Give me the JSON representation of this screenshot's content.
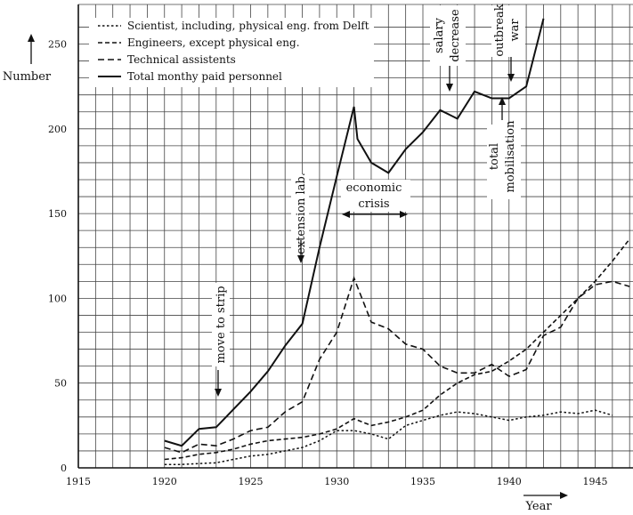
{
  "chart_data": {
    "type": "line",
    "title": "",
    "xlabel": "Year",
    "ylabel": "Number",
    "xlim": [
      1915,
      1947
    ],
    "ylim": [
      0,
      265
    ],
    "x_ticks": [
      1915,
      1920,
      1925,
      1930,
      1935,
      1940,
      1945
    ],
    "y_ticks": [
      0,
      50,
      100,
      150,
      200,
      250
    ],
    "grid": true,
    "legend_position": "top-left",
    "series": [
      {
        "name": "Scientist, including, physical eng. from Delft",
        "style": "dotted",
        "points": [
          [
            1920,
            2
          ],
          [
            1921,
            2
          ],
          [
            1922,
            2.5
          ],
          [
            1923,
            3
          ],
          [
            1924,
            5
          ],
          [
            1925,
            7
          ],
          [
            1926,
            8
          ],
          [
            1927,
            10
          ],
          [
            1928,
            12
          ],
          [
            1929,
            16
          ],
          [
            1930,
            22
          ],
          [
            1931,
            22
          ],
          [
            1932,
            20
          ],
          [
            1933,
            17
          ],
          [
            1934,
            25
          ],
          [
            1935,
            28
          ],
          [
            1936,
            31
          ],
          [
            1937,
            33
          ],
          [
            1938,
            32
          ],
          [
            1939,
            30
          ],
          [
            1940,
            28
          ],
          [
            1941,
            30
          ],
          [
            1942,
            31
          ],
          [
            1943,
            33
          ],
          [
            1944,
            32
          ],
          [
            1945,
            34
          ],
          [
            1946,
            31
          ]
        ]
      },
      {
        "name": "Engineers, except physical eng.",
        "style": "dashed",
        "points": [
          [
            1920,
            5
          ],
          [
            1921,
            6
          ],
          [
            1922,
            8
          ],
          [
            1923,
            9
          ],
          [
            1924,
            11
          ],
          [
            1925,
            14
          ],
          [
            1926,
            16
          ],
          [
            1927,
            17
          ],
          [
            1928,
            18
          ],
          [
            1929,
            20
          ],
          [
            1930,
            23
          ],
          [
            1931,
            29
          ],
          [
            1932,
            25
          ],
          [
            1933,
            27
          ],
          [
            1934,
            30
          ],
          [
            1935,
            34
          ],
          [
            1936,
            43
          ],
          [
            1937,
            50
          ],
          [
            1938,
            55
          ],
          [
            1939,
            57
          ],
          [
            1940,
            63
          ],
          [
            1941,
            70
          ],
          [
            1942,
            80
          ],
          [
            1943,
            90
          ],
          [
            1944,
            100
          ],
          [
            1945,
            110
          ],
          [
            1946,
            122
          ],
          [
            1947,
            135
          ]
        ]
      },
      {
        "name": "Technical assistents",
        "style": "dashed-long",
        "points": [
          [
            1920,
            12
          ],
          [
            1921,
            9
          ],
          [
            1922,
            14
          ],
          [
            1923,
            13
          ],
          [
            1924,
            17
          ],
          [
            1925,
            22
          ],
          [
            1926,
            24
          ],
          [
            1927,
            33
          ],
          [
            1928,
            39
          ],
          [
            1929,
            64
          ],
          [
            1930,
            80
          ],
          [
            1931,
            112
          ],
          [
            1932,
            86
          ],
          [
            1933,
            82
          ],
          [
            1934,
            73
          ],
          [
            1935,
            70
          ],
          [
            1936,
            60
          ],
          [
            1937,
            56
          ],
          [
            1938,
            56
          ],
          [
            1939,
            61
          ],
          [
            1940,
            54
          ],
          [
            1941,
            58
          ],
          [
            1942,
            78
          ],
          [
            1943,
            83
          ],
          [
            1944,
            100
          ],
          [
            1945,
            108
          ],
          [
            1946,
            110
          ],
          [
            1947,
            107
          ]
        ]
      },
      {
        "name": "Total monthy paid personnel",
        "style": "solid",
        "points": [
          [
            1920,
            16
          ],
          [
            1921,
            13
          ],
          [
            1922,
            23
          ],
          [
            1923,
            24
          ],
          [
            1925,
            45
          ],
          [
            1926,
            57
          ],
          [
            1927,
            72
          ],
          [
            1928,
            85
          ],
          [
            1929,
            130
          ],
          [
            1930,
            172
          ],
          [
            1931,
            213
          ],
          [
            1931.2,
            194
          ],
          [
            1932,
            180
          ],
          [
            1933,
            174
          ],
          [
            1934,
            188
          ],
          [
            1935,
            198
          ],
          [
            1936,
            211
          ],
          [
            1937,
            206
          ],
          [
            1938,
            222
          ],
          [
            1939,
            218
          ],
          [
            1940,
            218
          ],
          [
            1941,
            225
          ],
          [
            1942,
            265
          ]
        ]
      }
    ],
    "annotations": [
      {
        "id": "move",
        "text": "move to strip",
        "x": 1923,
        "y": 40,
        "arrow": "down"
      },
      {
        "id": "ext",
        "text": "extension lab.",
        "x": 1928,
        "y": 120,
        "arrow": "down"
      },
      {
        "id": "crisis",
        "text_lines": [
          "economic",
          "crisis"
        ],
        "x_from": 1930.3,
        "x_to": 1934,
        "y": 152,
        "arrow": "both-horizontal"
      },
      {
        "id": "salary",
        "text_lines": [
          "salary",
          "decrease"
        ],
        "x": 1937,
        "y": 255,
        "arrow": "down"
      },
      {
        "id": "outbreak",
        "text_lines": [
          "outbreak",
          "war"
        ],
        "x": 1940,
        "y": 255,
        "arrow": "down"
      },
      {
        "id": "mobil",
        "text_lines": [
          "total",
          "mobilisation"
        ],
        "x": 1939.5,
        "y": 180,
        "arrow": "up"
      }
    ]
  }
}
